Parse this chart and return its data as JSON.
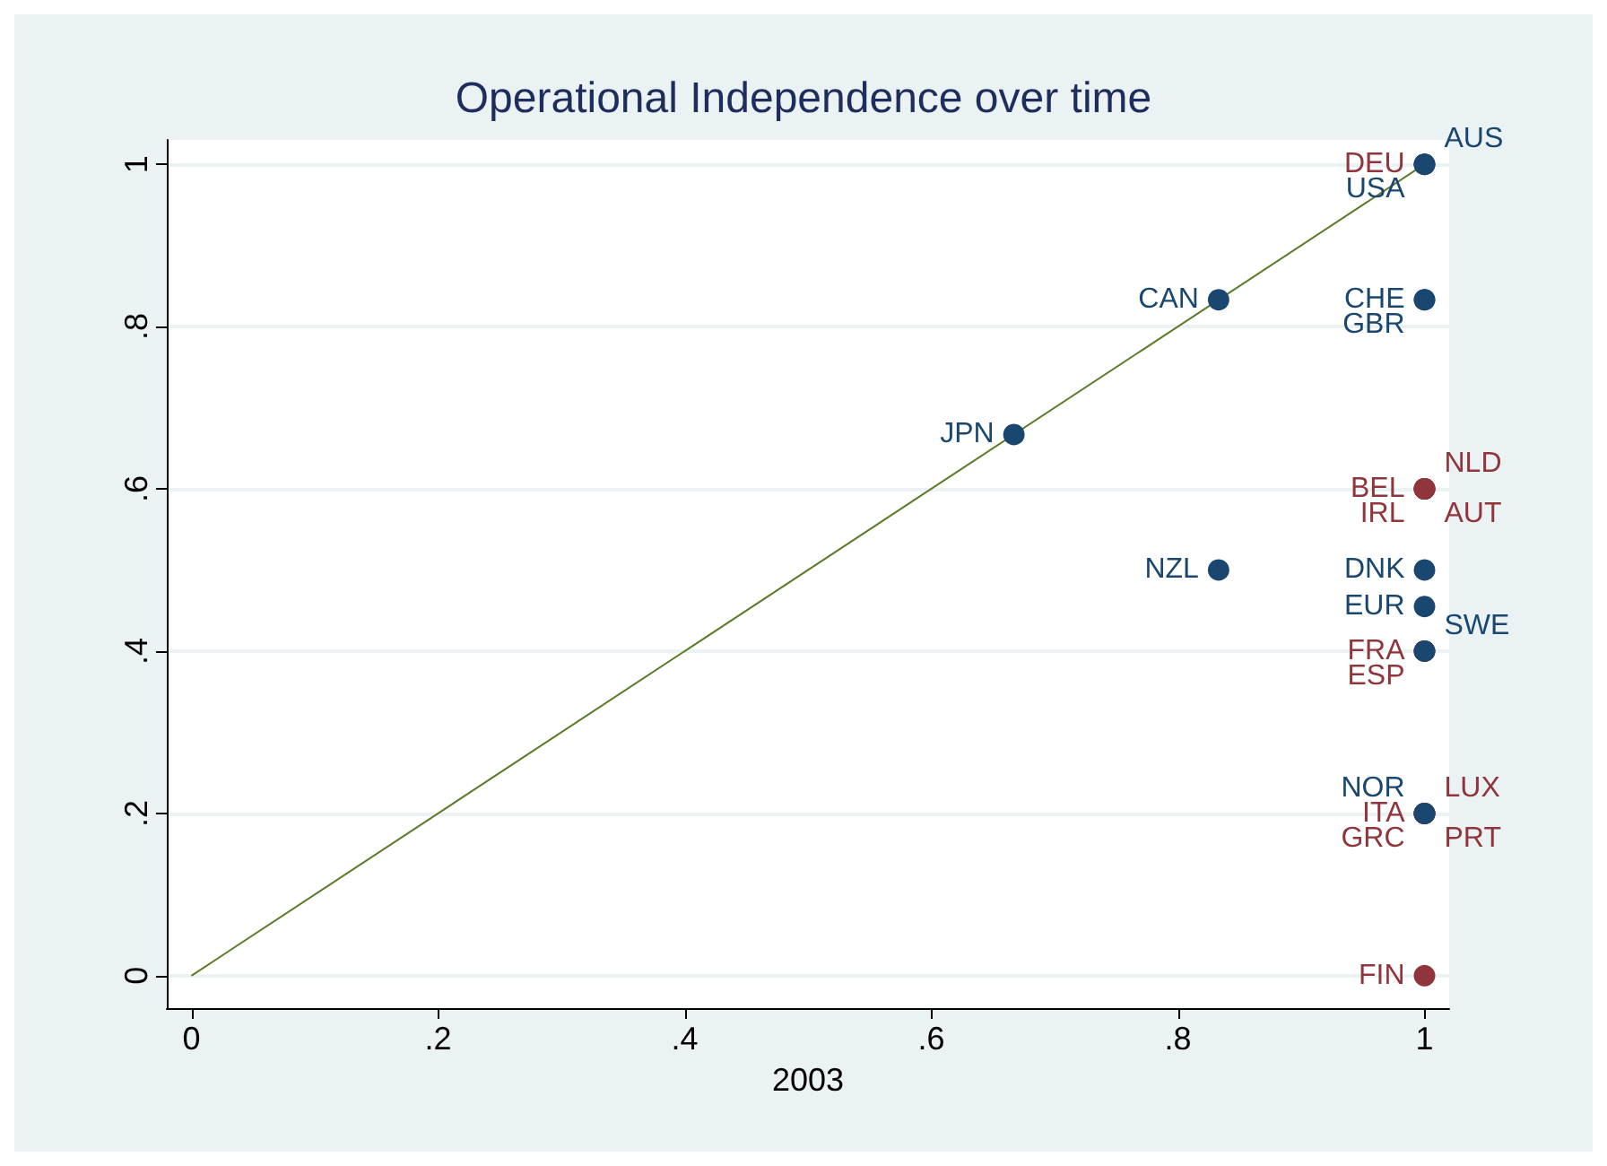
{
  "chart_data": {
    "type": "scatter",
    "title": "Operational Independence over time",
    "xlabel": "2003",
    "xlim": [
      -0.02,
      1.02
    ],
    "ylim": [
      -0.04,
      1.03
    ],
    "xticks": [
      0,
      {
        "value": 0.2,
        "label": ".2"
      },
      {
        "value": 0.4,
        "label": ".4"
      },
      {
        "value": 0.6,
        "label": ".6"
      },
      {
        "value": 0.8,
        "label": ".8"
      },
      1
    ],
    "yticks": [
      0,
      {
        "value": 0.2,
        "label": ".2"
      },
      {
        "value": 0.4,
        "label": ".4"
      },
      {
        "value": 0.6,
        "label": ".6"
      },
      {
        "value": 0.8,
        "label": ".8"
      },
      1
    ],
    "grid": "y",
    "marker": "circle",
    "series": [
      {
        "type": "line",
        "color": "#5d7a2a",
        "x": [
          0,
          1
        ],
        "values": [
          0,
          1
        ],
        "marker": "none"
      },
      {
        "color": "#90353b",
        "x": [
          1,
          1,
          1,
          1,
          1,
          1,
          1,
          1,
          1,
          1,
          1,
          1
        ],
        "values": [
          1,
          0.6,
          0.6,
          0.6,
          0.6,
          0.4,
          0.4,
          0.2,
          0.2,
          0.2,
          0.2,
          0
        ],
        "value_labels": [
          "DEU",
          "BEL",
          "IRL",
          "NLD",
          "AUT",
          "FRA",
          "ESP",
          "ITA",
          "GRC",
          "LUX",
          "PRT",
          "FIN"
        ]
      },
      {
        "color": "#1a476f",
        "x": [
          1,
          1,
          0.833,
          1,
          1,
          0.667,
          0.833,
          1,
          1,
          1,
          1
        ],
        "values": [
          1,
          1,
          0.833,
          0.833,
          0.833,
          0.667,
          0.5,
          0.5,
          0.455,
          0.4,
          0.2
        ],
        "value_labels": [
          "USA",
          "AUS",
          "CAN",
          "CHE",
          "GBR",
          "JPN",
          "NZL",
          "DNK",
          "EUR",
          "SWE",
          "NOR"
        ]
      }
    ]
  }
}
